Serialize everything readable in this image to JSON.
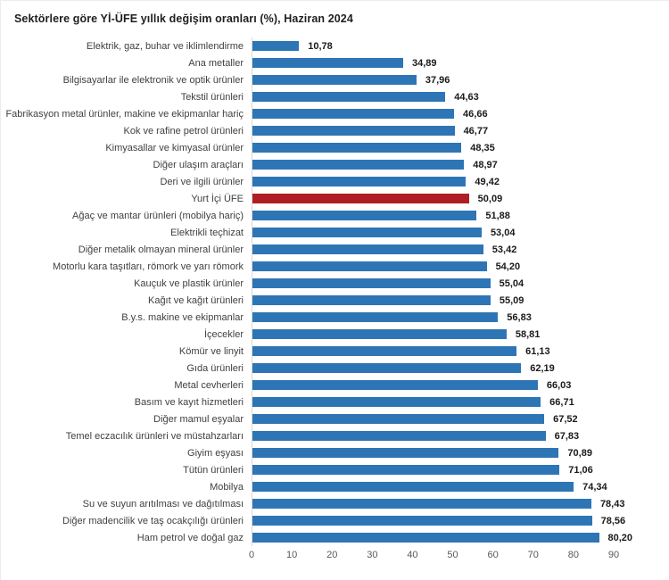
{
  "title": "Sektörlere göre Yİ-ÜFE yıllık değişim oranları (%), Haziran 2024",
  "chart_data": {
    "type": "bar",
    "orientation": "horizontal",
    "title": "Sektörlere göre Yİ-ÜFE yıllık değişim oranları (%), Haziran 2024",
    "xlabel": "",
    "ylabel": "",
    "xlim": [
      0,
      90
    ],
    "x_ticks": [
      0,
      10,
      20,
      30,
      40,
      50,
      60,
      70,
      80,
      90
    ],
    "grid": false,
    "legend_position": "none",
    "bar_color": "#2E75B6",
    "highlight_color": "#AE1E24",
    "value_decimal_separator": ",",
    "rows": [
      {
        "label": "Elektrik, gaz, buhar ve iklimlendirme",
        "value": 10.78,
        "display": "10,78",
        "highlight": false
      },
      {
        "label": "Ana metaller",
        "value": 34.89,
        "display": "34,89",
        "highlight": false
      },
      {
        "label": "Bilgisayarlar ile elektronik ve optik ürünler",
        "value": 37.96,
        "display": "37,96",
        "highlight": false
      },
      {
        "label": "Tekstil ürünleri",
        "value": 44.63,
        "display": "44,63",
        "highlight": false
      },
      {
        "label": "Fabrikasyon metal ürünler, makine ve ekipmanlar hariç",
        "value": 46.66,
        "display": "46,66",
        "highlight": false
      },
      {
        "label": "Kok ve rafine petrol ürünleri",
        "value": 46.77,
        "display": "46,77",
        "highlight": false
      },
      {
        "label": "Kimyasallar ve kimyasal ürünler",
        "value": 48.35,
        "display": "48,35",
        "highlight": false
      },
      {
        "label": "Diğer ulaşım araçları",
        "value": 48.97,
        "display": "48,97",
        "highlight": false
      },
      {
        "label": "Deri ve ilgili ürünler",
        "value": 49.42,
        "display": "49,42",
        "highlight": false
      },
      {
        "label": "Yurt İçi ÜFE",
        "value": 50.09,
        "display": "50,09",
        "highlight": true
      },
      {
        "label": "Ağaç ve mantar ürünleri (mobilya hariç)",
        "value": 51.88,
        "display": "51,88",
        "highlight": false
      },
      {
        "label": "Elektrikli teçhizat",
        "value": 53.04,
        "display": "53,04",
        "highlight": false
      },
      {
        "label": "Diğer metalik olmayan mineral ürünler",
        "value": 53.42,
        "display": "53,42",
        "highlight": false
      },
      {
        "label": "Motorlu kara taşıtları, römork ve yarı römork",
        "value": 54.2,
        "display": "54,20",
        "highlight": false
      },
      {
        "label": "Kauçuk ve plastik ürünler",
        "value": 55.04,
        "display": "55,04",
        "highlight": false
      },
      {
        "label": "Kağıt ve kağıt ürünleri",
        "value": 55.09,
        "display": "55,09",
        "highlight": false
      },
      {
        "label": "B.y.s. makine ve ekipmanlar",
        "value": 56.83,
        "display": "56,83",
        "highlight": false
      },
      {
        "label": "İçecekler",
        "value": 58.81,
        "display": "58,81",
        "highlight": false
      },
      {
        "label": "Kömür ve linyit",
        "value": 61.13,
        "display": "61,13",
        "highlight": false
      },
      {
        "label": "Gıda ürünleri",
        "value": 62.19,
        "display": "62,19",
        "highlight": false
      },
      {
        "label": "Metal cevherleri",
        "value": 66.03,
        "display": "66,03",
        "highlight": false
      },
      {
        "label": "Basım ve kayıt hizmetleri",
        "value": 66.71,
        "display": "66,71",
        "highlight": false
      },
      {
        "label": "Diğer mamul eşyalar",
        "value": 67.52,
        "display": "67,52",
        "highlight": false
      },
      {
        "label": "Temel eczacılık ürünleri ve müstahzarları",
        "value": 67.83,
        "display": "67,83",
        "highlight": false
      },
      {
        "label": "Giyim eşyası",
        "value": 70.89,
        "display": "70,89",
        "highlight": false
      },
      {
        "label": "Tütün ürünleri",
        "value": 71.06,
        "display": "71,06",
        "highlight": false
      },
      {
        "label": "Mobilya",
        "value": 74.34,
        "display": "74,34",
        "highlight": false
      },
      {
        "label": "Su ve suyun arıtılması ve dağıtılması",
        "value": 78.43,
        "display": "78,43",
        "highlight": false
      },
      {
        "label": "Diğer madencilik ve taş ocakçılığı ürünleri",
        "value": 78.56,
        "display": "78,56",
        "highlight": false
      },
      {
        "label": "Ham petrol ve doğal gaz",
        "value": 80.2,
        "display": "80,20",
        "highlight": false
      }
    ]
  }
}
